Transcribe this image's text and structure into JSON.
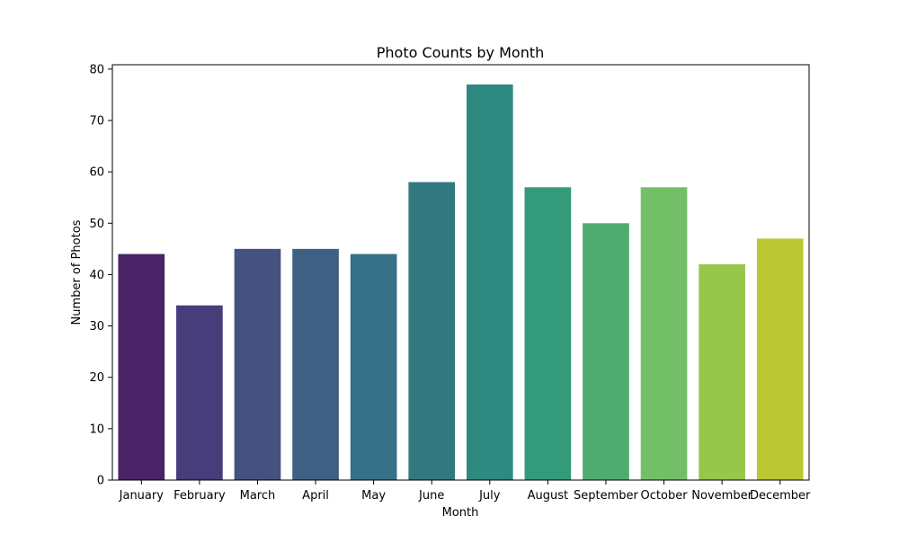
{
  "chart_data": {
    "type": "bar",
    "title": "Photo Counts by Month",
    "xlabel": "Month",
    "ylabel": "Number of Photos",
    "categories": [
      "January",
      "February",
      "March",
      "April",
      "May",
      "June",
      "July",
      "August",
      "September",
      "October",
      "November",
      "December"
    ],
    "values": [
      44,
      34,
      45,
      45,
      44,
      58,
      77,
      57,
      50,
      57,
      42,
      47
    ],
    "colors": [
      "#482466",
      "#473d7b",
      "#45527f",
      "#3f6083",
      "#377187",
      "#31787f",
      "#2e8a80",
      "#339a7a",
      "#50ab70",
      "#73bf68",
      "#98c64b",
      "#bac733"
    ],
    "ylim": [
      0,
      80.85
    ],
    "yticks": [
      0,
      10,
      20,
      30,
      40,
      50,
      60,
      70,
      80
    ],
    "grid": false,
    "legend": "none"
  }
}
